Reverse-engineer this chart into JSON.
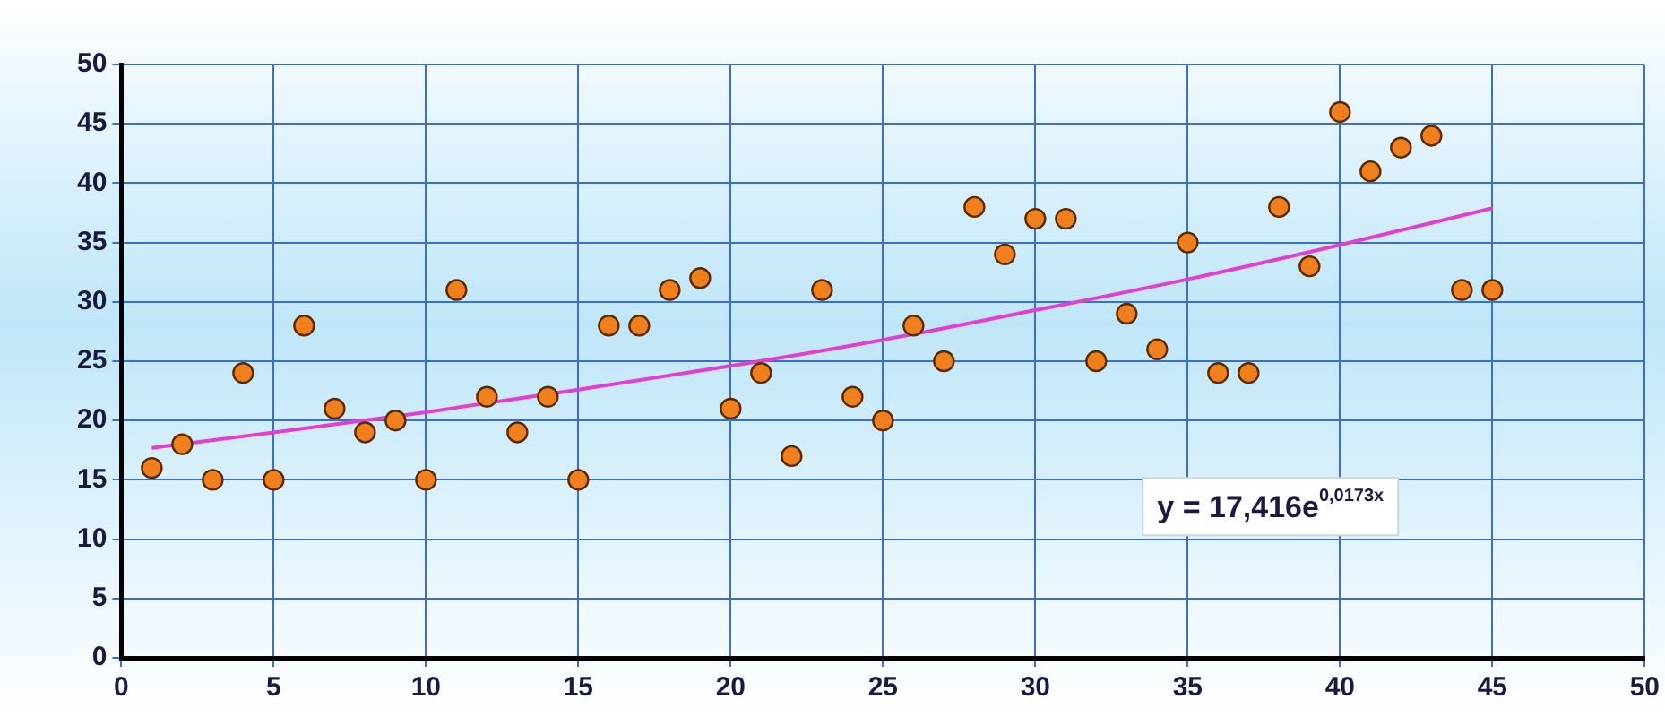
{
  "chart_data": {
    "type": "scatter",
    "annotations": [
      "y = 17,416e$^{0,0173x}$"
    ],
    "series": [
      {
        "color": "#f07f1e",
        "marker": "circle",
        "x": [
          1,
          2,
          3,
          4,
          5,
          6,
          7,
          8,
          9,
          10,
          11,
          12,
          13,
          14,
          15,
          16,
          17,
          18,
          19,
          20,
          21,
          22,
          23,
          24,
          25,
          26,
          27,
          28,
          29,
          30,
          31,
          32,
          33,
          34,
          35,
          36,
          37,
          38,
          39,
          40,
          41,
          42,
          43,
          44,
          45
        ],
        "values": [
          16,
          18,
          15,
          24,
          15,
          28,
          21,
          19,
          20,
          15,
          31,
          22,
          19,
          22,
          15,
          28,
          28,
          31,
          32,
          21,
          24,
          17,
          31,
          22,
          20,
          28,
          25,
          38,
          34,
          37,
          37,
          25,
          29,
          26,
          35,
          24,
          24,
          38,
          33,
          46,
          41,
          43,
          44,
          31,
          31
        ]
      },
      {
        "type": "line",
        "color": "#e040d0",
        "x": [
          1,
          5,
          10,
          15,
          20,
          25,
          30,
          35,
          40,
          45
        ],
        "values": [
          17.7,
          19,
          20.7,
          22.6,
          24.6,
          26.8,
          29.3,
          31.9,
          34.8,
          37.9
        ]
      }
    ],
    "xlim": [
      0,
      50
    ],
    "xticks": [
      0,
      5,
      10,
      15,
      20,
      25,
      30,
      35,
      40,
      45,
      50
    ],
    "ylim": [
      0,
      50
    ],
    "yticks": [
      0,
      5,
      10,
      15,
      20,
      25,
      30,
      35,
      40,
      45,
      50
    ],
    "grid": true,
    "legend": false
  }
}
